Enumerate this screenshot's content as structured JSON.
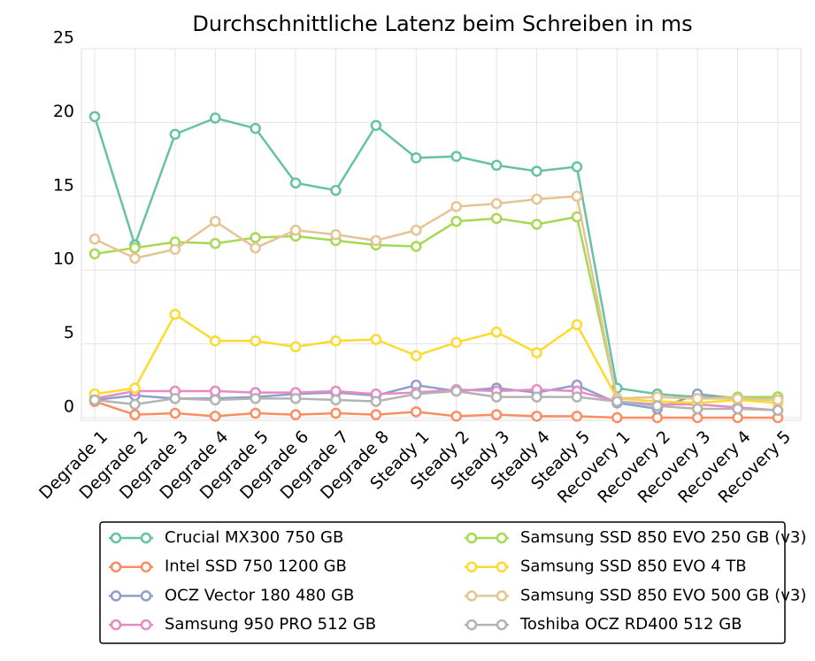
{
  "chart_data": {
    "type": "line",
    "title": "Durchschnittliche Latenz beim Schreiben in ms",
    "categories": [
      "Degrade 1",
      "Degrade 2",
      "Degrade 3",
      "Degrade 4",
      "Degrade 5",
      "Degrade 6",
      "Degrade 7",
      "Degrade 8",
      "Steady 1",
      "Steady 2",
      "Steady 3",
      "Steady 4",
      "Steady 5",
      "Recovery 1",
      "Recovery 2",
      "Recovery 3",
      "Recovery 4",
      "Recovery 5"
    ],
    "ylim": [
      0,
      25
    ],
    "yticks": [
      0,
      5,
      10,
      15,
      20,
      25
    ],
    "grid": true,
    "series": [
      {
        "name": "Crucial MX300 750 GB",
        "color": "#66c2a5",
        "values": [
          20.4,
          11.7,
          19.2,
          20.3,
          19.6,
          15.9,
          15.4,
          19.8,
          17.6,
          17.7,
          17.1,
          16.7,
          17.0,
          2.0,
          1.6,
          1.4,
          1.3,
          1.4
        ]
      },
      {
        "name": "Intel SSD 750 1200 GB",
        "color": "#fc8d62",
        "values": [
          1.1,
          0.2,
          0.3,
          0.1,
          0.3,
          0.2,
          0.3,
          0.2,
          0.4,
          0.1,
          0.2,
          0.1,
          0.1,
          0.0,
          0.0,
          0.0,
          0.0,
          0.0
        ]
      },
      {
        "name": "OCZ Vector 180 480 GB",
        "color": "#8da0cb",
        "values": [
          1.2,
          1.5,
          1.3,
          1.3,
          1.4,
          1.6,
          1.7,
          1.5,
          2.2,
          1.8,
          2.0,
          1.7,
          2.2,
          1.0,
          0.6,
          1.6,
          1.3,
          1.2
        ]
      },
      {
        "name": "Samsung 950 PRO 512 GB",
        "color": "#e78ac3",
        "values": [
          1.3,
          1.8,
          1.8,
          1.8,
          1.7,
          1.7,
          1.8,
          1.6,
          1.7,
          1.9,
          1.8,
          1.9,
          1.8,
          1.1,
          0.9,
          0.9,
          0.7,
          0.5
        ]
      },
      {
        "name": "Samsung SSD 850 EVO 250 GB (v3)",
        "color": "#a6d854",
        "values": [
          11.1,
          11.5,
          11.9,
          11.8,
          12.2,
          12.3,
          12.0,
          11.7,
          11.6,
          13.3,
          13.5,
          13.1,
          13.6,
          1.3,
          1.4,
          1.3,
          1.4,
          1.4
        ]
      },
      {
        "name": "Samsung SSD 850 EVO 4 TB",
        "color": "#ffd92f",
        "values": [
          1.6,
          2.0,
          7.0,
          5.2,
          5.2,
          4.8,
          5.2,
          5.3,
          4.2,
          5.1,
          5.8,
          4.4,
          6.3,
          1.3,
          1.1,
          1.0,
          1.2,
          1.0
        ]
      },
      {
        "name": "Samsung SSD 850 EVO 500 GB (v3)",
        "color": "#e5c494",
        "values": [
          12.1,
          10.8,
          11.4,
          13.3,
          11.5,
          12.7,
          12.4,
          12.0,
          12.7,
          14.3,
          14.5,
          14.8,
          15.0,
          1.3,
          1.4,
          1.3,
          1.3,
          1.2
        ]
      },
      {
        "name": "Toshiba OCZ RD400 512 GB",
        "color": "#b3b3b3",
        "values": [
          1.2,
          0.9,
          1.3,
          1.2,
          1.3,
          1.3,
          1.2,
          1.1,
          1.6,
          1.8,
          1.4,
          1.4,
          1.4,
          1.1,
          0.8,
          0.6,
          0.6,
          0.5
        ]
      }
    ]
  }
}
